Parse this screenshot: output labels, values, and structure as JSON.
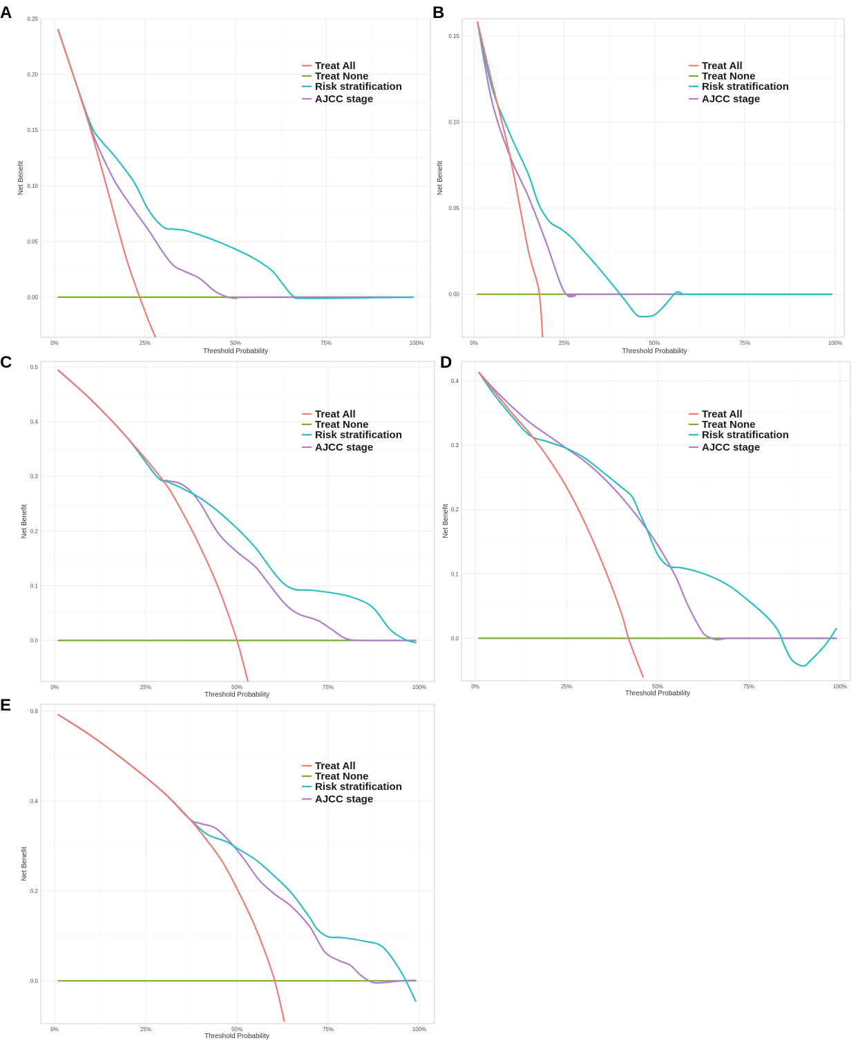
{
  "colors": {
    "treat_all": "#f07b72",
    "treat_none": "#7cae2e",
    "risk_stratification": "#2cbcc4",
    "ajcc_stage": "#b07cc8"
  },
  "chart_data": [
    {
      "panel": "A",
      "type": "line",
      "xlabel": "Threshold Probability",
      "ylabel": "Net Benefit",
      "xlim": [
        0,
        1
      ],
      "ylim": [
        -0.036,
        0.25
      ],
      "xticks": [
        "0%",
        "25%",
        "50%",
        "75%",
        "100%"
      ],
      "yticks": [
        "0.00",
        "0.05",
        "0.10",
        "0.15",
        "0.20",
        "0.25"
      ],
      "legend": [
        "Treat All",
        "Treat None",
        "Risk stratification",
        "AJCC stage"
      ],
      "series": [
        {
          "name": "Treat All",
          "x": [
            0.01,
            0.05,
            0.1,
            0.15,
            0.2,
            0.25,
            0.28
          ],
          "y": [
            0.24,
            0.201,
            0.15,
            0.092,
            0.033,
            -0.013,
            -0.037
          ]
        },
        {
          "name": "Treat None",
          "x": [
            0.01,
            0.99
          ],
          "y": [
            0,
            0
          ]
        },
        {
          "name": "Risk stratification",
          "x": [
            0.01,
            0.05,
            0.1,
            0.13,
            0.17,
            0.22,
            0.26,
            0.3,
            0.33,
            0.36,
            0.4,
            0.45,
            0.5,
            0.55,
            0.6,
            0.63,
            0.66,
            0.7,
            0.99
          ],
          "y": [
            0.24,
            0.201,
            0.155,
            0.14,
            0.125,
            0.103,
            0.078,
            0.063,
            0.061,
            0.06,
            0.056,
            0.05,
            0.043,
            0.035,
            0.024,
            0.012,
            0.001,
            -0.001,
            0.0
          ]
        },
        {
          "name": "AJCC stage",
          "x": [
            0.01,
            0.05,
            0.1,
            0.13,
            0.17,
            0.22,
            0.26,
            0.3,
            0.33,
            0.36,
            0.4,
            0.44,
            0.47,
            0.5,
            0.55,
            0.99
          ],
          "y": [
            0.24,
            0.201,
            0.152,
            0.128,
            0.102,
            0.078,
            0.06,
            0.04,
            0.028,
            0.023,
            0.017,
            0.006,
            0.001,
            -0.001,
            0.0,
            0.0
          ]
        }
      ]
    },
    {
      "panel": "B",
      "type": "line",
      "xlabel": "Threshold Probability",
      "ylabel": "Net Benefit",
      "xlim": [
        0,
        1
      ],
      "ylim": [
        -0.025,
        0.16
      ],
      "xticks": [
        "0%",
        "25%",
        "50%",
        "75%",
        "100%"
      ],
      "yticks": [
        "0.00",
        "0.05",
        "0.10",
        "0.15"
      ],
      "legend": [
        "Treat All",
        "Treat None",
        "Risk stratification",
        "AJCC stage"
      ],
      "series": [
        {
          "name": "Treat All",
          "x": [
            0.01,
            0.05,
            0.1,
            0.15,
            0.18,
            0.19
          ],
          "y": [
            0.158,
            0.123,
            0.08,
            0.026,
            0.002,
            -0.025
          ]
        },
        {
          "name": "Treat None",
          "x": [
            0.01,
            0.99
          ],
          "y": [
            0,
            0
          ]
        },
        {
          "name": "Risk stratification",
          "x": [
            0.01,
            0.05,
            0.1,
            0.15,
            0.18,
            0.21,
            0.24,
            0.27,
            0.3,
            0.33,
            0.37,
            0.42,
            0.45,
            0.47,
            0.5,
            0.53,
            0.56,
            0.58,
            0.6,
            0.99
          ],
          "y": [
            0.158,
            0.12,
            0.093,
            0.07,
            0.052,
            0.042,
            0.038,
            0.033,
            0.026,
            0.019,
            0.009,
            -0.004,
            -0.012,
            -0.013,
            -0.012,
            -0.006,
            0.001,
            0.0,
            0.0,
            0.0
          ]
        },
        {
          "name": "AJCC stage",
          "x": [
            0.01,
            0.05,
            0.1,
            0.15,
            0.2,
            0.24,
            0.26,
            0.28,
            0.32,
            0.99
          ],
          "y": [
            0.158,
            0.112,
            0.08,
            0.057,
            0.03,
            0.006,
            -0.001,
            -0.001,
            0.0,
            0.0
          ]
        }
      ]
    },
    {
      "panel": "C",
      "type": "line",
      "xlabel": "Threshold Probability",
      "ylabel": "Net Benefit",
      "xlim": [
        0,
        1
      ],
      "ylim": [
        -0.075,
        0.51
      ],
      "xticks": [
        "0%",
        "25%",
        "50%",
        "75%",
        "100%"
      ],
      "yticks": [
        "0.0",
        "0.1",
        "0.2",
        "0.3",
        "0.4",
        "0.5"
      ],
      "legend": [
        "Treat All",
        "Treat None",
        "Risk stratification",
        "AJCC stage"
      ],
      "series": [
        {
          "name": "Treat All",
          "x": [
            0.01,
            0.1,
            0.2,
            0.3,
            0.35,
            0.4,
            0.45,
            0.5,
            0.53
          ],
          "y": [
            0.494,
            0.44,
            0.37,
            0.29,
            0.235,
            0.17,
            0.095,
            0.0,
            -0.075
          ]
        },
        {
          "name": "Treat None",
          "x": [
            0.01,
            0.99
          ],
          "y": [
            0,
            0
          ]
        },
        {
          "name": "Risk stratification",
          "x": [
            0.01,
            0.1,
            0.2,
            0.28,
            0.31,
            0.35,
            0.4,
            0.45,
            0.5,
            0.55,
            0.6,
            0.63,
            0.66,
            0.7,
            0.75,
            0.8,
            0.85,
            0.88,
            0.92,
            0.96,
            0.99
          ],
          "y": [
            0.494,
            0.44,
            0.37,
            0.3,
            0.29,
            0.278,
            0.26,
            0.235,
            0.205,
            0.17,
            0.125,
            0.103,
            0.093,
            0.092,
            0.088,
            0.082,
            0.07,
            0.055,
            0.02,
            0.002,
            -0.004
          ]
        },
        {
          "name": "AJCC stage",
          "x": [
            0.01,
            0.1,
            0.2,
            0.28,
            0.31,
            0.34,
            0.37,
            0.4,
            0.45,
            0.5,
            0.55,
            0.58,
            0.63,
            0.67,
            0.72,
            0.76,
            0.8,
            0.85,
            0.99
          ],
          "y": [
            0.494,
            0.44,
            0.37,
            0.3,
            0.292,
            0.288,
            0.275,
            0.25,
            0.195,
            0.162,
            0.135,
            0.11,
            0.068,
            0.048,
            0.037,
            0.02,
            0.003,
            0.0,
            0.0
          ]
        }
      ]
    },
    {
      "panel": "D",
      "type": "line",
      "xlabel": "Threshold Probability",
      "ylabel": "Net Benefit",
      "xlim": [
        0,
        1
      ],
      "ylim": [
        -0.066,
        0.43
      ],
      "xticks": [
        "0%",
        "25%",
        "50%",
        "75%",
        "100%"
      ],
      "yticks": [
        "0.0",
        "0.1",
        "0.2",
        "0.3",
        "0.4"
      ],
      "legend": [
        "Treat All",
        "Treat None",
        "Risk stratification",
        "AJCC stage"
      ],
      "series": [
        {
          "name": "Treat All",
          "x": [
            0.01,
            0.1,
            0.15,
            0.2,
            0.25,
            0.3,
            0.35,
            0.4,
            0.42,
            0.46
          ],
          "y": [
            0.413,
            0.35,
            0.318,
            0.28,
            0.235,
            0.18,
            0.115,
            0.04,
            0.0,
            -0.06
          ]
        },
        {
          "name": "Treat None",
          "x": [
            0.01,
            0.99
          ],
          "y": [
            0,
            0
          ]
        },
        {
          "name": "Risk stratification",
          "x": [
            0.01,
            0.05,
            0.1,
            0.15,
            0.2,
            0.25,
            0.3,
            0.35,
            0.4,
            0.43,
            0.45,
            0.47,
            0.5,
            0.53,
            0.56,
            0.6,
            0.65,
            0.7,
            0.75,
            0.8,
            0.83,
            0.85,
            0.87,
            0.9,
            0.92,
            0.96,
            0.99
          ],
          "y": [
            0.413,
            0.38,
            0.345,
            0.315,
            0.305,
            0.295,
            0.28,
            0.258,
            0.235,
            0.22,
            0.195,
            0.17,
            0.13,
            0.112,
            0.11,
            0.105,
            0.095,
            0.08,
            0.058,
            0.033,
            0.012,
            -0.015,
            -0.035,
            -0.043,
            -0.034,
            -0.01,
            0.015
          ]
        },
        {
          "name": "AJCC stage",
          "x": [
            0.01,
            0.05,
            0.1,
            0.15,
            0.2,
            0.25,
            0.3,
            0.35,
            0.4,
            0.45,
            0.5,
            0.55,
            0.58,
            0.62,
            0.64,
            0.66,
            0.68,
            0.7,
            0.99
          ],
          "y": [
            0.413,
            0.388,
            0.36,
            0.335,
            0.315,
            0.295,
            0.275,
            0.25,
            0.22,
            0.185,
            0.145,
            0.095,
            0.055,
            0.012,
            0.002,
            -0.002,
            -0.001,
            0.0,
            0.0
          ]
        }
      ]
    },
    {
      "panel": "E",
      "type": "line",
      "xlabel": "Threshold Probability",
      "ylabel": "Net Benefit",
      "xlim": [
        0,
        1
      ],
      "ylim": [
        -0.095,
        0.615
      ],
      "xticks": [
        "0%",
        "25%",
        "50%",
        "75%",
        "100%"
      ],
      "yticks": [
        "0.0",
        "0.2",
        "0.4",
        "0.6"
      ],
      "legend": [
        "Treat All",
        "Treat None",
        "Risk stratification",
        "AJCC stage"
      ],
      "series": [
        {
          "name": "Treat All",
          "x": [
            0.01,
            0.1,
            0.2,
            0.3,
            0.37,
            0.42,
            0.46,
            0.5,
            0.55,
            0.6,
            0.63
          ],
          "y": [
            0.592,
            0.545,
            0.485,
            0.418,
            0.36,
            0.31,
            0.265,
            0.205,
            0.12,
            0.01,
            -0.09
          ]
        },
        {
          "name": "Treat None",
          "x": [
            0.01,
            0.99
          ],
          "y": [
            0,
            0
          ]
        },
        {
          "name": "Risk stratification",
          "x": [
            0.01,
            0.1,
            0.2,
            0.3,
            0.37,
            0.42,
            0.47,
            0.5,
            0.55,
            0.6,
            0.65,
            0.7,
            0.72,
            0.75,
            0.79,
            0.85,
            0.9,
            0.95,
            0.99
          ],
          "y": [
            0.592,
            0.545,
            0.485,
            0.418,
            0.36,
            0.325,
            0.31,
            0.295,
            0.27,
            0.235,
            0.195,
            0.14,
            0.115,
            0.098,
            0.096,
            0.088,
            0.075,
            0.02,
            -0.045
          ]
        },
        {
          "name": "AJCC stage",
          "x": [
            0.01,
            0.1,
            0.2,
            0.3,
            0.37,
            0.4,
            0.44,
            0.48,
            0.52,
            0.56,
            0.6,
            0.65,
            0.7,
            0.74,
            0.78,
            0.81,
            0.84,
            0.87,
            0.9,
            0.95,
            0.99
          ],
          "y": [
            0.592,
            0.545,
            0.485,
            0.418,
            0.36,
            0.35,
            0.34,
            0.31,
            0.27,
            0.225,
            0.195,
            0.165,
            0.12,
            0.065,
            0.045,
            0.035,
            0.012,
            -0.003,
            -0.004,
            0.0,
            0.001
          ]
        }
      ]
    }
  ]
}
